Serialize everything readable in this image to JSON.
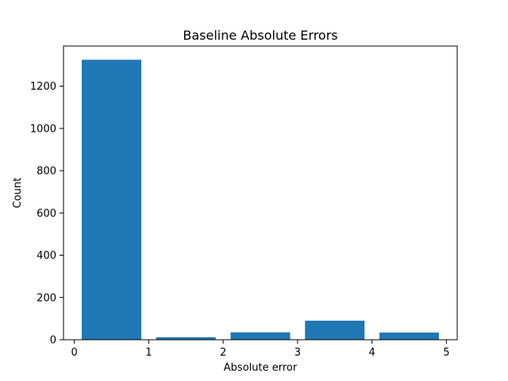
{
  "chart_data": {
    "type": "bar",
    "title": "Baseline Absolute Errors",
    "xlabel": "Absolute error",
    "ylabel": "Count",
    "xlim": [
      -0.145,
      5.145
    ],
    "ylim": [
      0,
      1390
    ],
    "bars": [
      {
        "x_left": 0.1,
        "x_right": 0.9,
        "value": 1325
      },
      {
        "x_left": 1.1,
        "x_right": 1.9,
        "value": 12
      },
      {
        "x_left": 2.1,
        "x_right": 2.9,
        "value": 35
      },
      {
        "x_left": 3.1,
        "x_right": 3.9,
        "value": 90
      },
      {
        "x_left": 4.1,
        "x_right": 4.9,
        "value": 34
      }
    ],
    "xticks": [
      0,
      1,
      2,
      3,
      4,
      5
    ],
    "xtick_labels": [
      "0",
      "1",
      "2",
      "3",
      "4",
      "5"
    ],
    "yticks": [
      0,
      200,
      400,
      600,
      800,
      1000,
      1200
    ],
    "ytick_labels": [
      "0",
      "200",
      "400",
      "600",
      "800",
      "1000",
      "1200"
    ],
    "bar_color": "#1f77b4",
    "grid": false,
    "legend": "none"
  }
}
